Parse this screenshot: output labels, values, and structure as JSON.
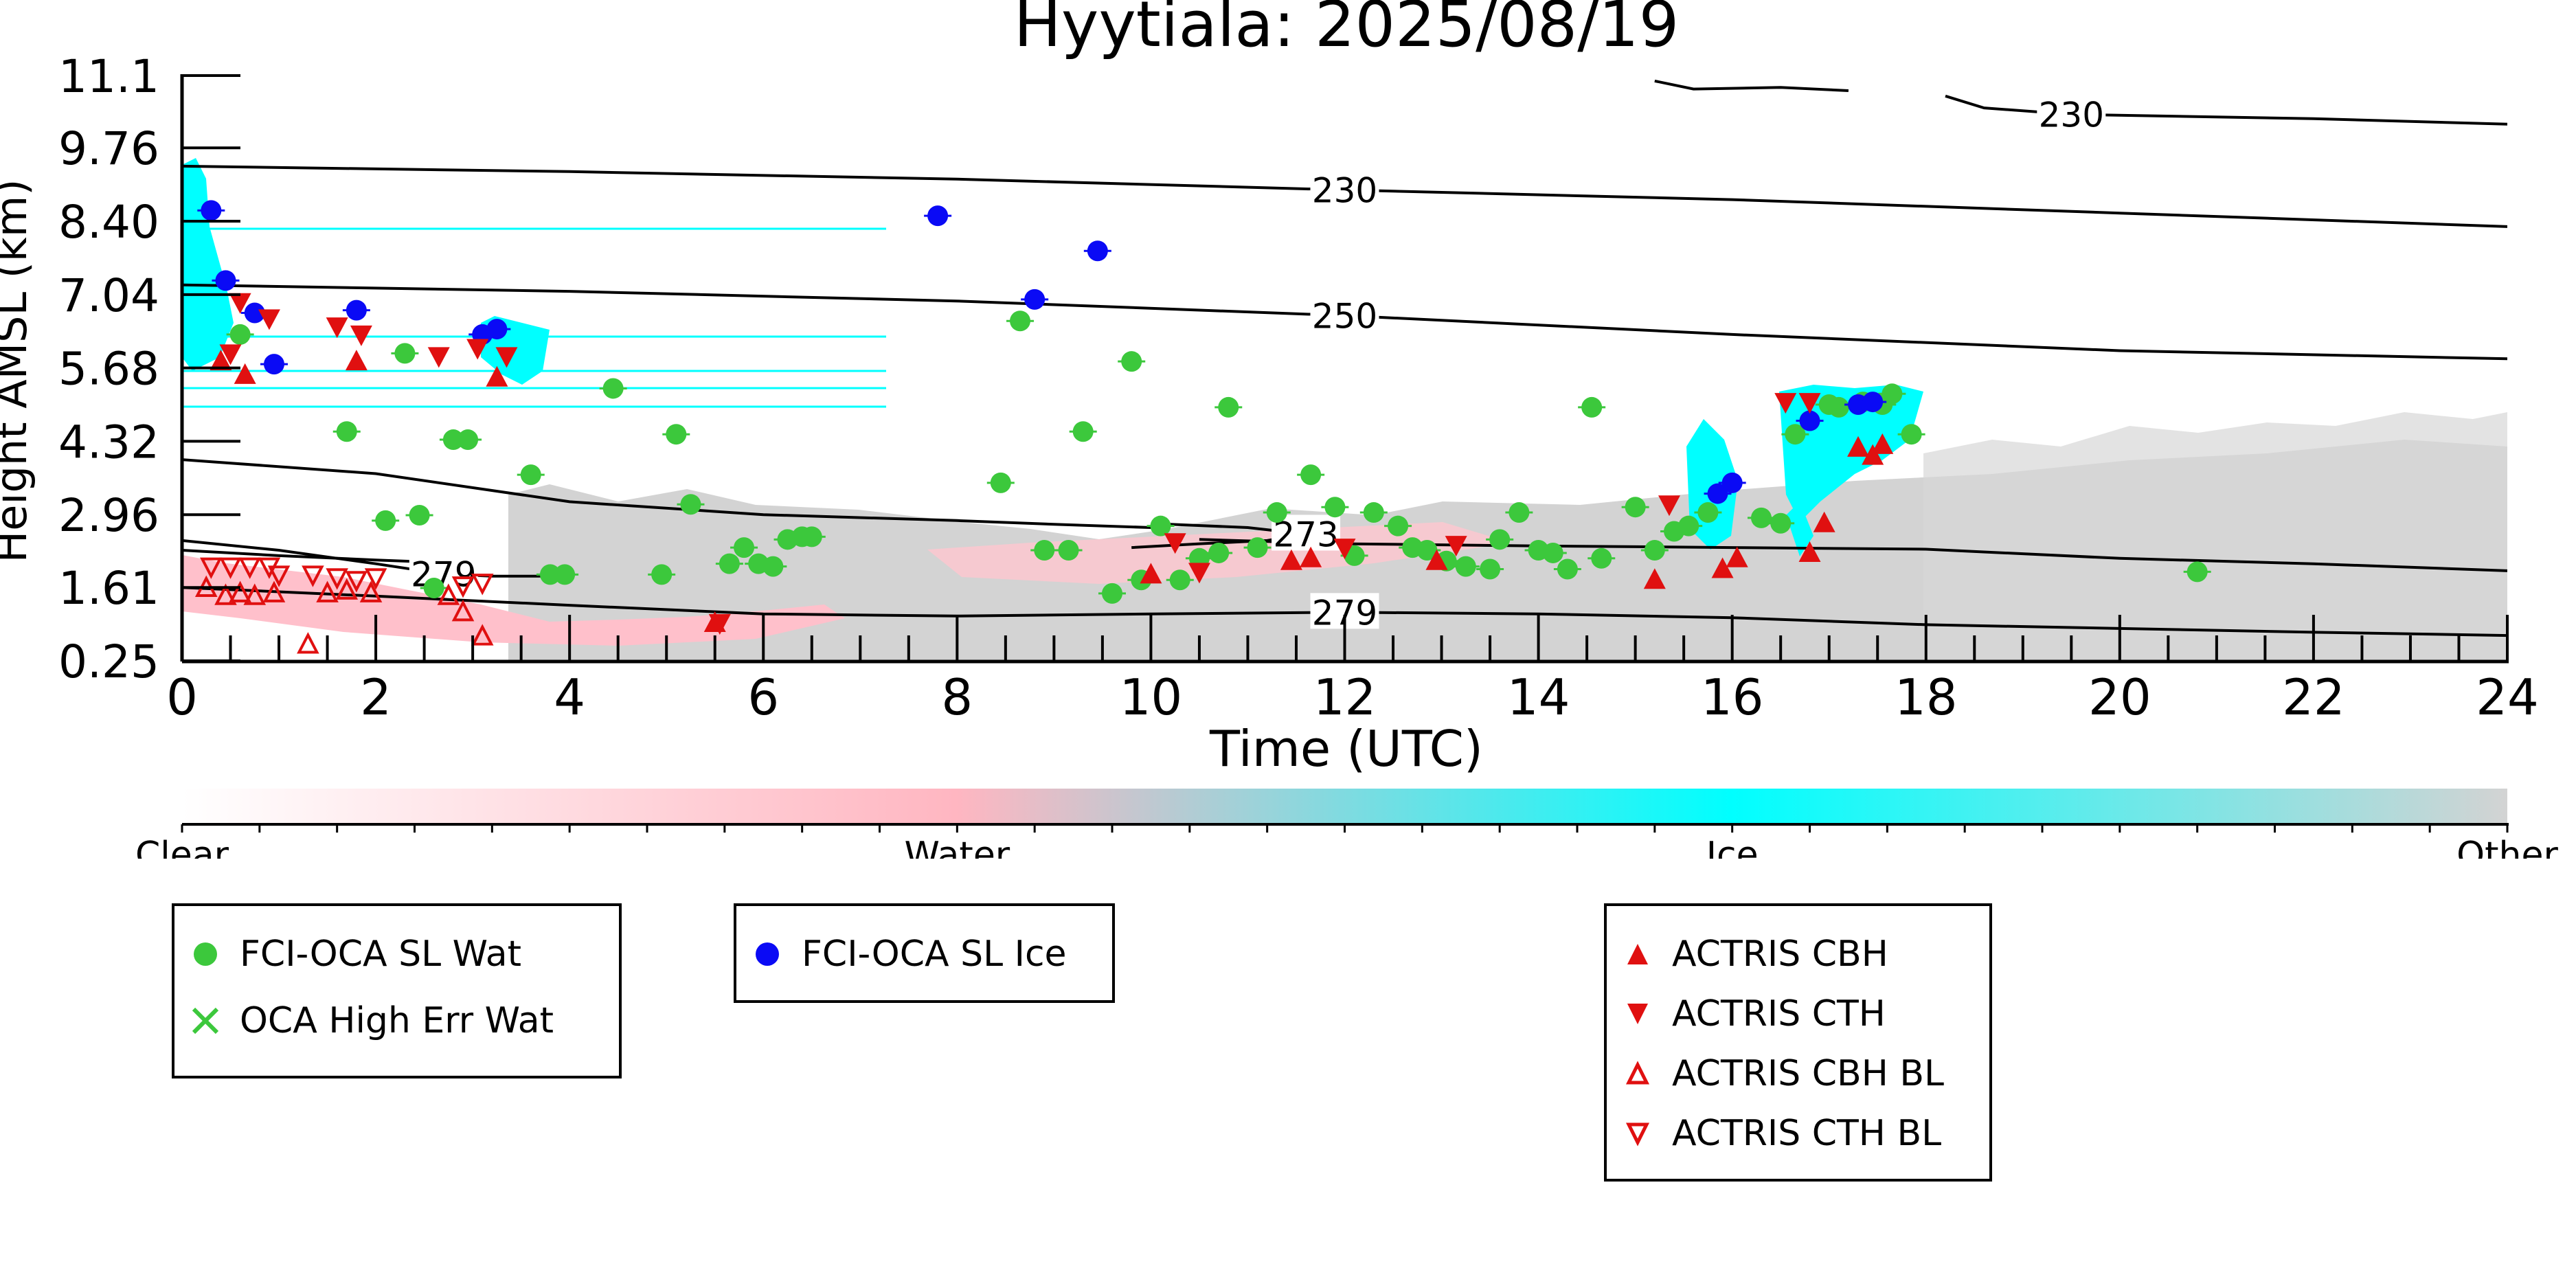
{
  "chart_data": {
    "type": "scatter",
    "title": "Hyytiala: 2025/08/19",
    "xlabel": "Time (UTC)",
    "ylabel": "Height AMSL (km)",
    "xlim": [
      0,
      24
    ],
    "ylim": [
      0.25,
      11.1
    ],
    "xticks": [
      "0",
      "2",
      "4",
      "6",
      "8",
      "10",
      "12",
      "14",
      "16",
      "18",
      "20",
      "22",
      "24"
    ],
    "yticks": [
      "0.25",
      "1.61",
      "2.96",
      "4.32",
      "5.68",
      "7.04",
      "8.40",
      "9.76",
      "11.1"
    ],
    "colorbar": {
      "labels": [
        "Clear",
        "Water",
        "Ice",
        "Other"
      ],
      "colors": [
        "#ffffff",
        "#ffb6c1",
        "#00ffff",
        "#d3d3d3"
      ]
    },
    "contours": [
      {
        "label": "230",
        "points": [
          [
            0,
            9.42
          ],
          [
            4,
            9.32
          ],
          [
            8,
            9.18
          ],
          [
            12,
            8.98
          ],
          [
            16,
            8.8
          ],
          [
            20,
            8.55
          ],
          [
            24,
            8.3
          ]
        ]
      },
      {
        "label": "230",
        "points": [
          [
            18.2,
            10.72
          ],
          [
            18.6,
            10.5
          ],
          [
            19.5,
            10.38
          ],
          [
            22,
            10.3
          ],
          [
            24,
            10.2
          ]
        ]
      },
      {
        "label": "",
        "points": [
          [
            15.2,
            11.0
          ],
          [
            15.6,
            10.85
          ],
          [
            16.5,
            10.88
          ],
          [
            17.2,
            10.82
          ]
        ]
      },
      {
        "label": "250",
        "points": [
          [
            0,
            7.22
          ],
          [
            4,
            7.1
          ],
          [
            8,
            6.92
          ],
          [
            12,
            6.65
          ],
          [
            16,
            6.3
          ],
          [
            20,
            6.0
          ],
          [
            24,
            5.85
          ]
        ]
      },
      {
        "label": "",
        "points": [
          [
            0,
            3.98
          ],
          [
            2,
            3.72
          ],
          [
            4,
            3.2
          ],
          [
            6,
            2.96
          ],
          [
            8,
            2.85
          ],
          [
            9,
            2.78
          ],
          [
            10,
            2.72
          ]
        ]
      },
      {
        "label": "273",
        "points": [
          [
            9.8,
            2.35
          ],
          [
            10.5,
            2.42
          ],
          [
            11.2,
            2.48
          ],
          [
            11.6,
            2.6
          ],
          [
            11,
            2.72
          ],
          [
            10.2,
            2.78
          ]
        ]
      },
      {
        "label": "279",
        "points": [
          [
            0,
            2.48
          ],
          [
            1,
            2.3
          ],
          [
            2,
            2.05
          ],
          [
            2.7,
            1.86
          ],
          [
            3.2,
            1.82
          ],
          [
            3.8,
            1.82
          ]
        ]
      },
      {
        "label": "",
        "points": [
          [
            0,
            2.3
          ],
          [
            1,
            2.2
          ],
          [
            2,
            2.12
          ],
          [
            3,
            2.05
          ]
        ]
      },
      {
        "label": "",
        "points": [
          [
            10.5,
            2.5
          ],
          [
            12,
            2.42
          ],
          [
            14,
            2.38
          ],
          [
            16,
            2.35
          ],
          [
            18,
            2.32
          ],
          [
            20,
            2.15
          ],
          [
            22,
            2.05
          ],
          [
            24,
            1.92
          ]
        ]
      },
      {
        "label": "279",
        "points": [
          [
            0,
            1.61
          ],
          [
            2,
            1.45
          ],
          [
            4,
            1.28
          ],
          [
            6,
            1.12
          ],
          [
            8,
            1.08
          ],
          [
            10,
            1.12
          ],
          [
            12,
            1.15
          ],
          [
            14,
            1.12
          ],
          [
            16,
            1.05
          ],
          [
            18,
            0.92
          ],
          [
            20,
            0.85
          ],
          [
            22,
            0.78
          ],
          [
            24,
            0.72
          ]
        ]
      }
    ],
    "series": [
      {
        "name": "FCI-OCA SL Wat",
        "marker": "circle",
        "color": "#3cc83c",
        "points": [
          [
            0.6,
            6.3
          ],
          [
            1.7,
            4.5
          ],
          [
            2.3,
            5.95
          ],
          [
            2.1,
            2.85
          ],
          [
            2.45,
            2.95
          ],
          [
            2.6,
            1.6
          ],
          [
            2.8,
            4.35
          ],
          [
            2.95,
            4.35
          ],
          [
            3.6,
            3.7
          ],
          [
            3.8,
            1.85
          ],
          [
            3.95,
            1.85
          ],
          [
            4.45,
            5.3
          ],
          [
            4.95,
            1.85
          ],
          [
            5.1,
            4.45
          ],
          [
            5.25,
            3.15
          ],
          [
            5.65,
            2.05
          ],
          [
            5.8,
            2.35
          ],
          [
            5.95,
            2.05
          ],
          [
            6.1,
            2.0
          ],
          [
            6.25,
            2.5
          ],
          [
            6.4,
            2.55
          ],
          [
            6.5,
            2.55
          ],
          [
            8.45,
            3.55
          ],
          [
            8.65,
            6.55
          ],
          [
            8.9,
            2.3
          ],
          [
            9.15,
            2.3
          ],
          [
            9.3,
            4.5
          ],
          [
            9.6,
            1.5
          ],
          [
            9.8,
            5.8
          ],
          [
            9.9,
            1.75
          ],
          [
            10.1,
            2.75
          ],
          [
            10.3,
            1.75
          ],
          [
            10.5,
            2.15
          ],
          [
            10.7,
            2.25
          ],
          [
            10.8,
            4.95
          ],
          [
            11.1,
            2.35
          ],
          [
            11.3,
            3.0
          ],
          [
            11.65,
            3.7
          ],
          [
            11.9,
            3.1
          ],
          [
            12.1,
            2.2
          ],
          [
            12.3,
            3.0
          ],
          [
            12.55,
            2.75
          ],
          [
            12.7,
            2.35
          ],
          [
            12.85,
            2.3
          ],
          [
            13.05,
            2.1
          ],
          [
            13.25,
            2.0
          ],
          [
            13.5,
            1.95
          ],
          [
            13.6,
            2.5
          ],
          [
            13.8,
            3.0
          ],
          [
            14.0,
            2.3
          ],
          [
            14.15,
            2.25
          ],
          [
            14.3,
            1.95
          ],
          [
            14.55,
            4.95
          ],
          [
            14.65,
            2.15
          ],
          [
            15.0,
            3.1
          ],
          [
            15.2,
            2.3
          ],
          [
            15.4,
            2.65
          ],
          [
            15.55,
            2.75
          ],
          [
            15.75,
            3.0
          ],
          [
            16.3,
            2.9
          ],
          [
            16.5,
            2.8
          ],
          [
            16.65,
            4.45
          ],
          [
            16.8,
            4.7
          ],
          [
            17.0,
            5.0
          ],
          [
            17.1,
            4.95
          ],
          [
            17.35,
            5.05
          ],
          [
            17.55,
            5.0
          ],
          [
            17.65,
            5.2
          ],
          [
            17.85,
            4.45
          ],
          [
            20.8,
            1.9
          ]
        ]
      },
      {
        "name": "OCA High Err Wat",
        "marker": "x",
        "color": "#3cc83c",
        "points": []
      },
      {
        "name": "FCI-OCA SL Ice",
        "marker": "circle",
        "color": "#0a0af5",
        "points": [
          [
            0.3,
            8.6
          ],
          [
            0.45,
            7.3
          ],
          [
            0.75,
            6.7
          ],
          [
            0.95,
            5.75
          ],
          [
            1.8,
            6.75
          ],
          [
            3.1,
            6.3
          ],
          [
            3.25,
            6.4
          ],
          [
            7.8,
            8.5
          ],
          [
            8.8,
            6.95
          ],
          [
            9.45,
            7.85
          ],
          [
            15.85,
            3.35
          ],
          [
            16.0,
            3.55
          ],
          [
            16.8,
            4.7
          ],
          [
            17.3,
            5.0
          ],
          [
            17.45,
            5.05
          ]
        ]
      },
      {
        "name": "ACTRIS CBH",
        "marker": "triangle-up",
        "color": "#e01010",
        "points": [
          [
            0.4,
            5.8
          ],
          [
            0.65,
            5.55
          ],
          [
            1.8,
            5.8
          ],
          [
            3.25,
            5.5
          ],
          [
            5.5,
            0.95
          ],
          [
            10.0,
            1.85
          ],
          [
            11.45,
            2.1
          ],
          [
            11.65,
            2.15
          ],
          [
            12.95,
            2.1
          ],
          [
            15.2,
            1.75
          ],
          [
            15.9,
            1.95
          ],
          [
            16.05,
            2.15
          ],
          [
            16.8,
            2.25
          ],
          [
            16.95,
            2.8
          ],
          [
            17.3,
            4.2
          ],
          [
            17.45,
            4.05
          ],
          [
            17.55,
            4.25
          ]
        ]
      },
      {
        "name": "ACTRIS CTH",
        "marker": "triangle-down",
        "color": "#e01010",
        "points": [
          [
            0.5,
            5.95
          ],
          [
            0.6,
            6.9
          ],
          [
            0.9,
            6.6
          ],
          [
            1.6,
            6.45
          ],
          [
            1.85,
            6.3
          ],
          [
            2.65,
            5.9
          ],
          [
            3.05,
            6.05
          ],
          [
            3.35,
            5.9
          ],
          [
            5.55,
            0.95
          ],
          [
            10.25,
            2.45
          ],
          [
            10.5,
            1.9
          ],
          [
            12.0,
            2.35
          ],
          [
            13.15,
            2.4
          ],
          [
            15.35,
            3.15
          ],
          [
            16.55,
            5.05
          ],
          [
            16.8,
            5.05
          ]
        ]
      },
      {
        "name": "ACTRIS CBH BL",
        "marker": "triangle-up-open",
        "color": "#e01010",
        "points": [
          [
            0.25,
            1.6
          ],
          [
            0.45,
            1.45
          ],
          [
            0.6,
            1.5
          ],
          [
            0.75,
            1.45
          ],
          [
            0.95,
            1.5
          ],
          [
            1.3,
            0.55
          ],
          [
            1.5,
            1.5
          ],
          [
            1.7,
            1.55
          ],
          [
            1.95,
            1.5
          ],
          [
            2.75,
            1.45
          ],
          [
            2.9,
            1.15
          ],
          [
            3.1,
            0.7
          ]
        ]
      },
      {
        "name": "ACTRIS CTH BL",
        "marker": "triangle-down-open",
        "color": "#e01010",
        "points": [
          [
            0.3,
            2.0
          ],
          [
            0.5,
            2.0
          ],
          [
            0.7,
            2.0
          ],
          [
            0.9,
            2.0
          ],
          [
            1.0,
            1.85
          ],
          [
            1.35,
            1.85
          ],
          [
            1.6,
            1.8
          ],
          [
            1.8,
            1.75
          ],
          [
            2.0,
            1.8
          ],
          [
            2.9,
            1.65
          ],
          [
            3.1,
            1.7
          ]
        ]
      }
    ]
  },
  "legend": {
    "box1": [
      "FCI-OCA SL Wat",
      "OCA High Err Wat"
    ],
    "box2": [
      "FCI-OCA SL Ice"
    ],
    "box3": [
      "ACTRIS CBH",
      "ACTRIS CTH",
      "ACTRIS CBH BL",
      "ACTRIS CTH BL"
    ]
  }
}
